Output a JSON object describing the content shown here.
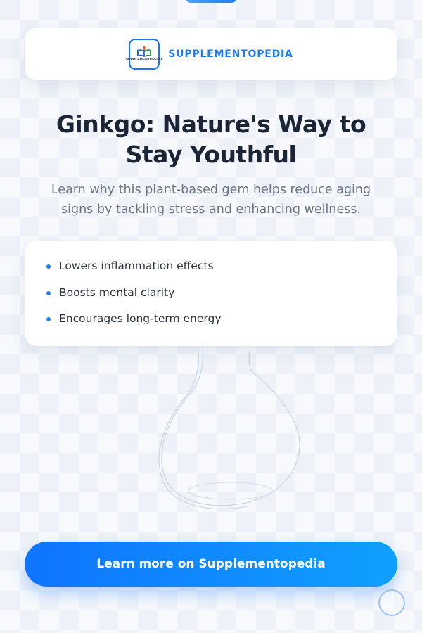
{
  "brand": {
    "logo_text": "SUPPLEMENTOPEDIA",
    "name": "SUPPLEMENTOPEDIA",
    "accent_color": "#1e7cf5"
  },
  "hero": {
    "headline_line1": "Ginkgo: Nature's Way to",
    "headline_line2": "Stay Youthful",
    "subtext_line1": "Learn why this plant-based gem helps reduce aging",
    "subtext_line2": "signs by tackling stress and enhancing wellness."
  },
  "benefits": [
    "Lowers inflammation effects",
    "Boosts mental clarity",
    "Encourages long-term energy"
  ],
  "cta": {
    "label": "Learn more on Supplementopedia",
    "gradient_start": "#0f74ff",
    "gradient_end": "#10a0ff"
  },
  "icons": {
    "logo": "book-icon",
    "bullet": "dot-icon",
    "background_art": "bottle-icon",
    "corner": "circle-icon"
  }
}
